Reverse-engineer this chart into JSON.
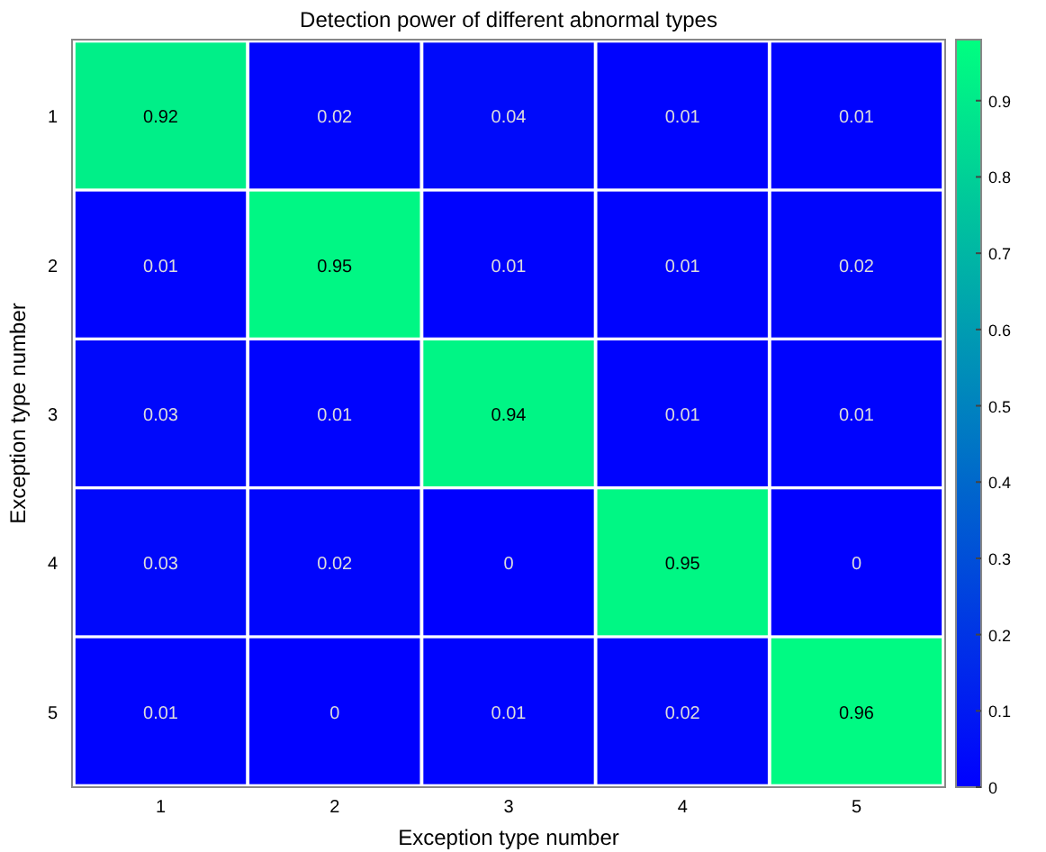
{
  "chart_data": {
    "type": "heatmap",
    "title": "Detection power of different abnormal types",
    "xlabel": "Exception type number",
    "ylabel": "Exception type number",
    "categories": [
      "1",
      "2",
      "3",
      "4",
      "5"
    ],
    "y_categories": [
      "1",
      "2",
      "3",
      "4",
      "5"
    ],
    "cells": [
      [
        0.92,
        0.02,
        0.04,
        0.01,
        0.01
      ],
      [
        0.01,
        0.95,
        0.01,
        0.01,
        0.02
      ],
      [
        0.03,
        0.01,
        0.94,
        0.01,
        0.01
      ],
      [
        0.03,
        0.02,
        0,
        0.95,
        0
      ],
      [
        0.01,
        0,
        0.01,
        0.02,
        0.96
      ]
    ],
    "clim": [
      0,
      0.98
    ],
    "data_labels": true,
    "cticks": [
      0,
      0.1,
      0.2,
      0.3,
      0.4,
      0.5,
      0.6,
      0.7,
      0.8,
      0.9
    ]
  }
}
